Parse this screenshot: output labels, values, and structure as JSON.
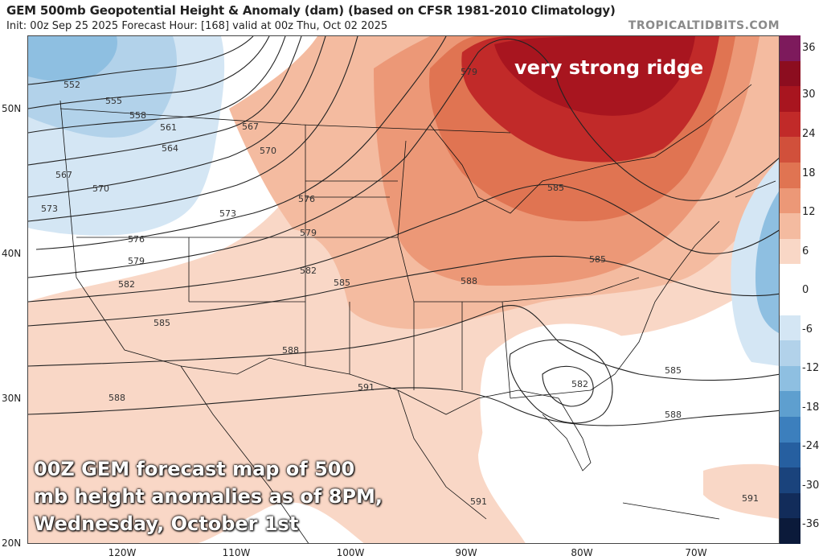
{
  "header": {
    "title": "GEM 500mb Geopotential Height & Anomaly (dam) (based on CFSR 1981-2010 Climatology)",
    "subtitle": "Init: 00z Sep 25 2025   Forecast Hour: [168]   valid at 00z Thu, Oct 02 2025",
    "brand": "TROPICALTIDBITS.COM"
  },
  "axes": {
    "lat_labels": [
      "50N",
      "40N",
      "30N",
      "20N"
    ],
    "lon_labels": [
      "120W",
      "110W",
      "100W",
      "90W",
      "80W",
      "70W"
    ]
  },
  "colorbar": {
    "labels": [
      "36",
      "30",
      "24",
      "18",
      "12",
      "6",
      "0",
      "-6",
      "-12",
      "-18",
      "-24",
      "-30",
      "-36"
    ],
    "colors": [
      "#7d1a5c",
      "#8c0d1f",
      "#a8151f",
      "#c12a29",
      "#d1503b",
      "#e07452",
      "#ec9877",
      "#f4bba0",
      "#f9d7c6",
      "#ffffff",
      "#ffffff",
      "#d4e6f4",
      "#b2d2ea",
      "#8ebfe1",
      "#5e9fcf",
      "#3c7fbd",
      "#265fa0",
      "#1a437c",
      "#122c5a",
      "#0b1a3a"
    ]
  },
  "contours": {
    "labels": [
      "552",
      "555",
      "558",
      "561",
      "564",
      "567",
      "567",
      "570",
      "570",
      "573",
      "573",
      "576",
      "576",
      "579",
      "579",
      "579",
      "582",
      "582",
      "582",
      "585",
      "585",
      "585",
      "585",
      "585",
      "588",
      "588",
      "588",
      "588",
      "591",
      "591",
      "591"
    ]
  },
  "annotations": {
    "ridge": "very strong ridge",
    "caption": [
      "00Z GEM forecast map of 500",
      "mb height anomalies as of 8PM,",
      "Wednesday, October 1st"
    ]
  }
}
